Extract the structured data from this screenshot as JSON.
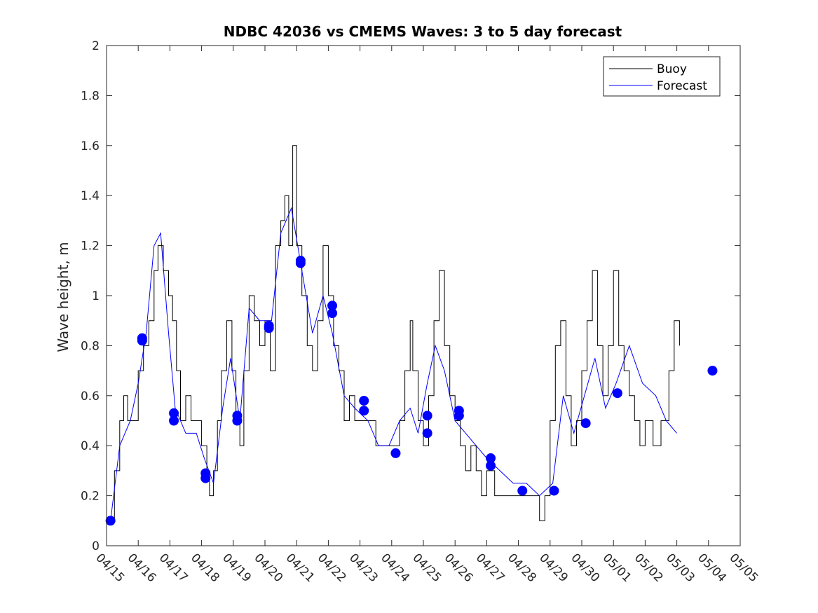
{
  "chart_data": {
    "type": "line",
    "title": "NDBC 42036 vs CMEMS Waves: 3 to 5 day forecast",
    "xlabel": "",
    "ylabel": "Wave height, m",
    "xlim": [
      "2024-04-15",
      "2024-05-05"
    ],
    "ylim": [
      0,
      2
    ],
    "grid": false,
    "legend_position": "top-right",
    "x_tick_labels": [
      "04/15",
      "04/16",
      "04/17",
      "04/18",
      "04/19",
      "04/20",
      "04/21",
      "04/22",
      "04/23",
      "04/24",
      "04/25",
      "04/26",
      "04/27",
      "04/28",
      "04/29",
      "04/30",
      "05/01",
      "05/02",
      "05/03",
      "05/04",
      "05/05"
    ],
    "y_tick_labels": [
      "0",
      "0.2",
      "0.4",
      "0.6",
      "0.8",
      "1",
      "1.2",
      "1.4",
      "1.6",
      "1.8",
      "2"
    ],
    "series": [
      {
        "name": "Buoy",
        "color": "#000000",
        "style": "step-line",
        "points": [
          [
            "2024-04-15 04:00",
            0.1
          ],
          [
            "2024-04-15 06:00",
            0.3
          ],
          [
            "2024-04-15 10:00",
            0.5
          ],
          [
            "2024-04-15 13:00",
            0.6
          ],
          [
            "2024-04-15 16:00",
            0.5
          ],
          [
            "2024-04-16 00:00",
            0.7
          ],
          [
            "2024-04-16 04:00",
            0.8
          ],
          [
            "2024-04-16 08:00",
            0.9
          ],
          [
            "2024-04-16 12:00",
            1.1
          ],
          [
            "2024-04-16 15:00",
            1.2
          ],
          [
            "2024-04-16 19:00",
            1.1
          ],
          [
            "2024-04-16 23:00",
            1.0
          ],
          [
            "2024-04-17 02:00",
            0.9
          ],
          [
            "2024-04-17 05:00",
            0.7
          ],
          [
            "2024-04-17 08:00",
            0.5
          ],
          [
            "2024-04-17 12:00",
            0.6
          ],
          [
            "2024-04-17 16:00",
            0.5
          ],
          [
            "2024-04-18 00:00",
            0.4
          ],
          [
            "2024-04-18 04:00",
            0.3
          ],
          [
            "2024-04-18 06:00",
            0.2
          ],
          [
            "2024-04-18 09:00",
            0.3
          ],
          [
            "2024-04-18 12:00",
            0.5
          ],
          [
            "2024-04-18 15:00",
            0.7
          ],
          [
            "2024-04-18 19:00",
            0.9
          ],
          [
            "2024-04-18 23:00",
            0.7
          ],
          [
            "2024-04-19 02:00",
            0.5
          ],
          [
            "2024-04-19 05:00",
            0.4
          ],
          [
            "2024-04-19 08:00",
            0.7
          ],
          [
            "2024-04-19 12:00",
            1.0
          ],
          [
            "2024-04-19 16:00",
            0.9
          ],
          [
            "2024-04-19 20:00",
            0.8
          ],
          [
            "2024-04-20 00:00",
            0.9
          ],
          [
            "2024-04-20 04:00",
            0.7
          ],
          [
            "2024-04-20 08:00",
            1.2
          ],
          [
            "2024-04-20 12:00",
            1.3
          ],
          [
            "2024-04-20 15:00",
            1.4
          ],
          [
            "2024-04-20 18:00",
            1.2
          ],
          [
            "2024-04-20 21:00",
            1.6
          ],
          [
            "2024-04-21 00:00",
            1.2
          ],
          [
            "2024-04-21 04:00",
            1.0
          ],
          [
            "2024-04-21 08:00",
            0.8
          ],
          [
            "2024-04-21 12:00",
            0.7
          ],
          [
            "2024-04-21 16:00",
            0.9
          ],
          [
            "2024-04-21 20:00",
            1.2
          ],
          [
            "2024-04-22 00:00",
            1.0
          ],
          [
            "2024-04-22 04:00",
            0.8
          ],
          [
            "2024-04-22 08:00",
            0.7
          ],
          [
            "2024-04-22 12:00",
            0.5
          ],
          [
            "2024-04-22 16:00",
            0.6
          ],
          [
            "2024-04-22 20:00",
            0.5
          ],
          [
            "2024-04-23 00:00",
            0.5
          ],
          [
            "2024-04-23 06:00",
            0.5
          ],
          [
            "2024-04-23 12:00",
            0.4
          ],
          [
            "2024-04-23 18:00",
            0.4
          ],
          [
            "2024-04-24 00:00",
            0.4
          ],
          [
            "2024-04-24 06:00",
            0.5
          ],
          [
            "2024-04-24 10:00",
            0.7
          ],
          [
            "2024-04-24 14:00",
            0.9
          ],
          [
            "2024-04-24 16:00",
            0.7
          ],
          [
            "2024-04-24 20:00",
            0.5
          ],
          [
            "2024-04-25 00:00",
            0.4
          ],
          [
            "2024-04-25 04:00",
            0.6
          ],
          [
            "2024-04-25 08:00",
            0.9
          ],
          [
            "2024-04-25 12:00",
            1.1
          ],
          [
            "2024-04-25 16:00",
            0.8
          ],
          [
            "2024-04-25 20:00",
            0.6
          ],
          [
            "2024-04-26 00:00",
            0.5
          ],
          [
            "2024-04-26 04:00",
            0.4
          ],
          [
            "2024-04-26 08:00",
            0.3
          ],
          [
            "2024-04-26 12:00",
            0.4
          ],
          [
            "2024-04-26 16:00",
            0.3
          ],
          [
            "2024-04-26 20:00",
            0.2
          ],
          [
            "2024-04-27 00:00",
            0.3
          ],
          [
            "2024-04-27 06:00",
            0.2
          ],
          [
            "2024-04-27 12:00",
            0.2
          ],
          [
            "2024-04-27 18:00",
            0.2
          ],
          [
            "2024-04-28 00:00",
            0.2
          ],
          [
            "2024-04-28 06:00",
            0.2
          ],
          [
            "2024-04-28 12:00",
            0.2
          ],
          [
            "2024-04-28 16:00",
            0.1
          ],
          [
            "2024-04-28 20:00",
            0.2
          ],
          [
            "2024-04-29 00:00",
            0.5
          ],
          [
            "2024-04-29 04:00",
            0.8
          ],
          [
            "2024-04-29 08:00",
            0.9
          ],
          [
            "2024-04-29 12:00",
            0.6
          ],
          [
            "2024-04-29 16:00",
            0.4
          ],
          [
            "2024-04-29 20:00",
            0.5
          ],
          [
            "2024-04-30 00:00",
            0.7
          ],
          [
            "2024-04-30 04:00",
            0.9
          ],
          [
            "2024-04-30 08:00",
            1.1
          ],
          [
            "2024-04-30 12:00",
            0.8
          ],
          [
            "2024-04-30 16:00",
            0.6
          ],
          [
            "2024-04-30 20:00",
            0.8
          ],
          [
            "2024-05-01 00:00",
            1.1
          ],
          [
            "2024-05-01 04:00",
            0.8
          ],
          [
            "2024-05-01 08:00",
            0.7
          ],
          [
            "2024-05-01 12:00",
            0.6
          ],
          [
            "2024-05-01 16:00",
            0.5
          ],
          [
            "2024-05-01 20:00",
            0.4
          ],
          [
            "2024-05-02 00:00",
            0.5
          ],
          [
            "2024-05-02 06:00",
            0.4
          ],
          [
            "2024-05-02 12:00",
            0.5
          ],
          [
            "2024-05-02 18:00",
            0.7
          ],
          [
            "2024-05-02 22:00",
            0.9
          ],
          [
            "2024-05-03 02:00",
            0.8
          ]
        ]
      },
      {
        "name": "Forecast",
        "color": "#0000ff",
        "style": "line",
        "points": [
          [
            "2024-04-15 03:00",
            0.1
          ],
          [
            "2024-04-15 10:00",
            0.4
          ],
          [
            "2024-04-15 18:00",
            0.5
          ],
          [
            "2024-04-16 00:00",
            0.65
          ],
          [
            "2024-04-16 06:00",
            0.85
          ],
          [
            "2024-04-16 12:00",
            1.2
          ],
          [
            "2024-04-16 17:00",
            1.25
          ],
          [
            "2024-04-16 23:00",
            0.85
          ],
          [
            "2024-04-17 04:00",
            0.55
          ],
          [
            "2024-04-17 12:00",
            0.45
          ],
          [
            "2024-04-17 20:00",
            0.45
          ],
          [
            "2024-04-18 02:00",
            0.35
          ],
          [
            "2024-04-18 09:00",
            0.25
          ],
          [
            "2024-04-18 16:00",
            0.55
          ],
          [
            "2024-04-18 22:00",
            0.75
          ],
          [
            "2024-04-19 05:00",
            0.5
          ],
          [
            "2024-04-19 12:00",
            0.95
          ],
          [
            "2024-04-19 20:00",
            0.9
          ],
          [
            "2024-04-20 05:00",
            0.9
          ],
          [
            "2024-04-20 12:00",
            1.25
          ],
          [
            "2024-04-20 20:00",
            1.35
          ],
          [
            "2024-04-21 04:00",
            1.1
          ],
          [
            "2024-04-21 12:00",
            0.85
          ],
          [
            "2024-04-21 20:00",
            1.0
          ],
          [
            "2024-04-22 03:00",
            0.85
          ],
          [
            "2024-04-22 12:00",
            0.6
          ],
          [
            "2024-04-22 20:00",
            0.55
          ],
          [
            "2024-04-23 06:00",
            0.5
          ],
          [
            "2024-04-23 14:00",
            0.4
          ],
          [
            "2024-04-23 22:00",
            0.4
          ],
          [
            "2024-04-24 06:00",
            0.5
          ],
          [
            "2024-04-24 14:00",
            0.55
          ],
          [
            "2024-04-24 20:00",
            0.45
          ],
          [
            "2024-04-25 03:00",
            0.65
          ],
          [
            "2024-04-25 09:00",
            0.8
          ],
          [
            "2024-04-25 16:00",
            0.7
          ],
          [
            "2024-04-26 00:00",
            0.5
          ],
          [
            "2024-04-26 08:00",
            0.45
          ],
          [
            "2024-04-26 16:00",
            0.4
          ],
          [
            "2024-04-27 00:00",
            0.35
          ],
          [
            "2024-04-27 10:00",
            0.3
          ],
          [
            "2024-04-27 20:00",
            0.25
          ],
          [
            "2024-04-28 06:00",
            0.25
          ],
          [
            "2024-04-28 16:00",
            0.2
          ],
          [
            "2024-04-29 02:00",
            0.25
          ],
          [
            "2024-04-29 10:00",
            0.6
          ],
          [
            "2024-04-29 18:00",
            0.45
          ],
          [
            "2024-04-30 02:00",
            0.6
          ],
          [
            "2024-04-30 10:00",
            0.75
          ],
          [
            "2024-04-30 18:00",
            0.55
          ],
          [
            "2024-05-01 02:00",
            0.65
          ],
          [
            "2024-05-01 12:00",
            0.8
          ],
          [
            "2024-05-01 22:00",
            0.65
          ],
          [
            "2024-05-02 08:00",
            0.6
          ],
          [
            "2024-05-02 16:00",
            0.5
          ],
          [
            "2024-05-03 00:00",
            0.45
          ]
        ]
      }
    ],
    "forecast_start_markers": [
      [
        "2024-04-15 03:00",
        0.1
      ],
      [
        "2024-04-16 03:00",
        0.83
      ],
      [
        "2024-04-16 03:00",
        0.82
      ],
      [
        "2024-04-17 03:00",
        0.53
      ],
      [
        "2024-04-17 03:00",
        0.5
      ],
      [
        "2024-04-18 03:00",
        0.29
      ],
      [
        "2024-04-18 03:00",
        0.27
      ],
      [
        "2024-04-19 03:00",
        0.52
      ],
      [
        "2024-04-19 03:00",
        0.5
      ],
      [
        "2024-04-20 03:00",
        0.88
      ],
      [
        "2024-04-20 03:00",
        0.87
      ],
      [
        "2024-04-21 03:00",
        1.14
      ],
      [
        "2024-04-21 03:00",
        1.13
      ],
      [
        "2024-04-22 03:00",
        0.96
      ],
      [
        "2024-04-22 03:00",
        0.93
      ],
      [
        "2024-04-23 03:00",
        0.58
      ],
      [
        "2024-04-23 03:00",
        0.54
      ],
      [
        "2024-04-24 03:00",
        0.37
      ],
      [
        "2024-04-25 03:00",
        0.52
      ],
      [
        "2024-04-25 03:00",
        0.45
      ],
      [
        "2024-04-26 03:00",
        0.54
      ],
      [
        "2024-04-26 03:00",
        0.52
      ],
      [
        "2024-04-27 03:00",
        0.35
      ],
      [
        "2024-04-27 03:00",
        0.32
      ],
      [
        "2024-04-28 03:00",
        0.22
      ],
      [
        "2024-04-29 03:00",
        0.22
      ],
      [
        "2024-04-30 03:00",
        0.49
      ],
      [
        "2024-05-01 03:00",
        0.61
      ],
      [
        "2024-05-04 03:00",
        0.7
      ]
    ]
  }
}
